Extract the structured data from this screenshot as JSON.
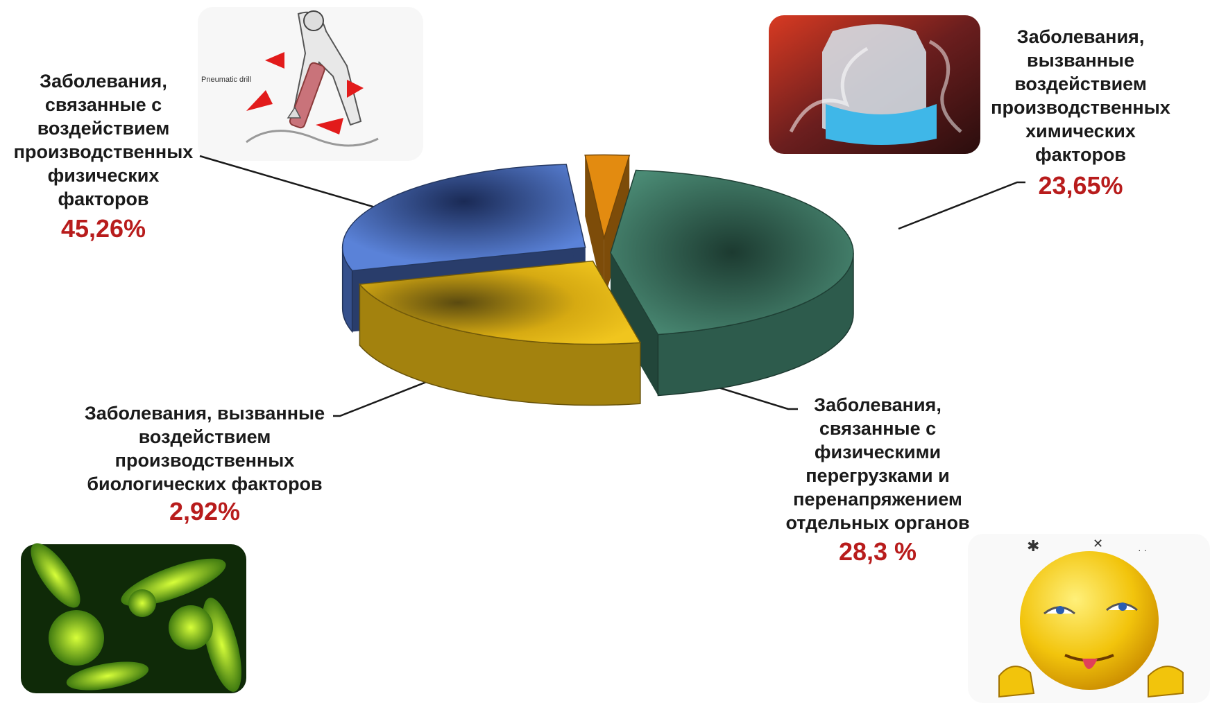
{
  "chart_data": {
    "type": "pie",
    "categories": [
      "Заболевания, связанные с воздействием производственных физических факторов",
      "Заболевания, вызванные воздействием производственных химических факторов",
      "Заболевания, связанные с физическими перегрузками и перенапряжением отдельных органов",
      "Заболевания, вызванные воздействием производственных биологических факторов"
    ],
    "values": [
      45.26,
      23.65,
      28.3,
      2.92
    ],
    "value_labels": [
      "45,26%",
      "23,65%",
      "28,3 %",
      "2,92%"
    ],
    "colors": [
      "#3e7f6a",
      "#e3b414",
      "#4a6fc2",
      "#e38b10"
    ],
    "title": "",
    "legend": "none",
    "three_d": true
  },
  "labels": {
    "physical": "Заболевания,\nсвязанные с\nвоздействием\nпроизводственных\nфизических\nфакторов",
    "chemical": "Заболевания,\nвызванные\nвоздействием\nпроизводственных\nхимических\nфакторов",
    "overload": "Заболевания,\nсвязанные с\nфизическими\nперегрузками и\nперенапряжением\nотдельных органов",
    "biological": "Заболевания, вызванные\nвоздействием\nпроизводственных\nбиологических факторов"
  },
  "pictures": {
    "drill_caption": "Pneumatic drill"
  }
}
